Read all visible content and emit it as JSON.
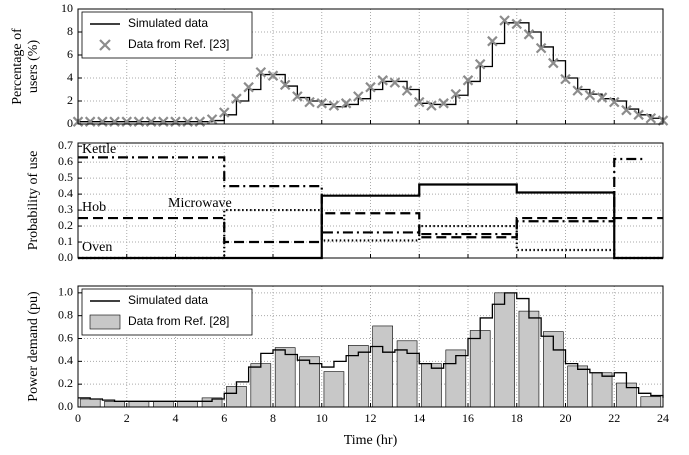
{
  "chart_data": [
    {
      "type": "line",
      "ylabel": [
        "Percentage of",
        "users (%)"
      ],
      "xlim": [
        0,
        24
      ],
      "ylim": [
        0,
        10
      ],
      "xticks": [
        0,
        2,
        4,
        6,
        8,
        10,
        12,
        14,
        16,
        18,
        20,
        22,
        24
      ],
      "yticks": [
        0,
        2,
        4,
        6,
        8,
        10
      ],
      "grid": true,
      "legend": "upper left",
      "series": [
        {
          "name": "Simulated data",
          "type": "line",
          "step": true,
          "color": "#000000",
          "x": [
            0,
            0.5,
            1,
            1.5,
            2,
            2.5,
            3,
            3.5,
            4,
            4.5,
            5,
            5.5,
            6,
            6.5,
            7,
            7.5,
            8,
            8.5,
            9,
            9.5,
            10,
            10.5,
            11,
            11.5,
            12,
            12.5,
            13,
            13.5,
            14,
            14.5,
            15,
            15.5,
            16,
            16.5,
            17,
            17.5,
            18,
            18.5,
            19,
            19.5,
            20,
            20.5,
            21,
            21.5,
            22,
            22.5,
            23,
            23.5,
            24
          ],
          "values": [
            0.2,
            0.2,
            0.2,
            0.2,
            0.2,
            0.2,
            0.2,
            0.2,
            0.2,
            0.2,
            0.2,
            0.3,
            0.8,
            2,
            3,
            4.3,
            4.3,
            3.3,
            2.3,
            2,
            1.7,
            1.5,
            1.7,
            2.2,
            3,
            3.7,
            3.7,
            3,
            1.8,
            1.7,
            1.7,
            2.5,
            3.7,
            5,
            7,
            8.8,
            8.8,
            8,
            6.7,
            5.5,
            4,
            3,
            2.6,
            2.2,
            2,
            1.3,
            0.8,
            0.5,
            0.3
          ]
        },
        {
          "name": "Data from Ref. [23]",
          "type": "scatter",
          "color": "#8c8c8c",
          "x": [
            0,
            0.5,
            1,
            1.5,
            2,
            2.5,
            3,
            3.5,
            4,
            4.5,
            5,
            5.5,
            6,
            6.5,
            7,
            7.5,
            8,
            8.5,
            9,
            9.5,
            10,
            10.5,
            11,
            11.5,
            12,
            12.5,
            13,
            13.5,
            14,
            14.5,
            15,
            15.5,
            16,
            16.5,
            17,
            17.5,
            18,
            18.5,
            19,
            19.5,
            20,
            20.5,
            21,
            21.5,
            22,
            22.5,
            23,
            23.5,
            24
          ],
          "values": [
            0.2,
            0.2,
            0.2,
            0.2,
            0.2,
            0.2,
            0.2,
            0.2,
            0.2,
            0.2,
            0.2,
            0.4,
            1,
            2.2,
            3.2,
            4.5,
            4.2,
            3.4,
            2.4,
            1.9,
            1.8,
            1.6,
            1.8,
            2.4,
            3.2,
            3.8,
            3.6,
            2.9,
            1.9,
            1.6,
            1.8,
            2.6,
            3.8,
            5.2,
            7.2,
            9,
            8.7,
            7.8,
            6.6,
            5.3,
            3.9,
            2.9,
            2.5,
            2.3,
            1.9,
            1.2,
            0.8,
            0.5,
            0.3
          ]
        }
      ]
    },
    {
      "type": "line",
      "ylabel": [
        "Probability of use"
      ],
      "xlim": [
        0,
        24
      ],
      "ylim": [
        0,
        0.72
      ],
      "xticks": [
        0,
        2,
        4,
        6,
        8,
        10,
        12,
        14,
        16,
        18,
        20,
        22,
        24
      ],
      "yticks": [
        {
          "value": 0,
          "label": "0.0"
        },
        0.1,
        0.2,
        0.3,
        0.4,
        0.5,
        0.6,
        0.7
      ],
      "grid": true,
      "annotations": [
        "Kettle",
        "Hob",
        "Microwave",
        "Oven"
      ],
      "series": [
        {
          "name": "Kettle",
          "type": "line",
          "step": true,
          "dash": "dashdot",
          "color": "#000000",
          "x": [
            0,
            6,
            10,
            14,
            18,
            22,
            23.2
          ],
          "values": [
            0.63,
            0.45,
            0.16,
            0.15,
            0.23,
            0.62,
            0.62
          ]
        },
        {
          "name": "Hob",
          "type": "line",
          "step": true,
          "dash": "dash",
          "color": "#000000",
          "x": [
            0,
            6,
            10,
            14,
            18,
            22,
            24
          ],
          "values": [
            0.25,
            0.1,
            0.28,
            0.13,
            0.25,
            0.25,
            0.25
          ]
        },
        {
          "name": "Microwave",
          "type": "line",
          "step": true,
          "dash": "dot",
          "color": "#000000",
          "x": [
            0,
            6,
            10,
            14,
            18,
            22,
            24
          ],
          "values": [
            0,
            0.3,
            0.11,
            0.2,
            0.05,
            0,
            0
          ]
        },
        {
          "name": "Oven",
          "type": "line",
          "step": true,
          "dash": "solid",
          "color": "#000000",
          "x": [
            0,
            6,
            10,
            14,
            18,
            22,
            24
          ],
          "values": [
            0,
            0,
            0.39,
            0.46,
            0.41,
            0,
            0
          ]
        }
      ]
    },
    {
      "type": "bar",
      "ylabel": [
        "Power demand (pu)"
      ],
      "xlabel": "Time (hr)",
      "xlim": [
        0,
        24
      ],
      "ylim": [
        0,
        1.06
      ],
      "xticks": [
        0,
        2,
        4,
        6,
        8,
        10,
        12,
        14,
        16,
        18,
        20,
        22,
        24
      ],
      "yticks": [
        {
          "value": 0,
          "label": "0.0"
        },
        0.2,
        0.4,
        0.6,
        0.8,
        {
          "value": 1,
          "label": "1.0"
        }
      ],
      "grid": true,
      "legend": "upper left",
      "series": [
        {
          "name": "Simulated data",
          "type": "line",
          "step": true,
          "color": "#000000",
          "x": [
            0,
            0.5,
            1,
            1.5,
            2,
            2.5,
            3,
            3.5,
            4,
            4.5,
            5,
            5.5,
            6,
            6.5,
            7,
            7.5,
            8,
            8.5,
            9,
            9.5,
            10,
            10.5,
            11,
            11.5,
            12,
            12.5,
            13,
            13.5,
            14,
            14.5,
            15,
            15.5,
            16,
            16.5,
            17,
            17.5,
            18,
            18.5,
            19,
            19.5,
            20,
            20.5,
            21,
            21.5,
            22,
            22.5,
            23,
            23.5,
            24
          ],
          "values": [
            0.08,
            0.07,
            0.06,
            0.05,
            0.05,
            0.05,
            0.05,
            0.05,
            0.05,
            0.05,
            0.05,
            0.07,
            0.12,
            0.22,
            0.35,
            0.47,
            0.5,
            0.46,
            0.41,
            0.38,
            0.35,
            0.4,
            0.45,
            0.48,
            0.53,
            0.48,
            0.5,
            0.47,
            0.38,
            0.34,
            0.38,
            0.45,
            0.6,
            0.78,
            0.9,
            1.0,
            0.95,
            0.78,
            0.62,
            0.5,
            0.38,
            0.33,
            0.3,
            0.27,
            0.3,
            0.17,
            0.12,
            0.1,
            0.08
          ]
        },
        {
          "name": "Data from Ref. [28]",
          "type": "bar",
          "color": "#c8c8c8",
          "x": [
            0.5,
            1.5,
            2.5,
            3.5,
            4.5,
            5.5,
            6.5,
            7.5,
            8.5,
            9.5,
            10.5,
            11.5,
            12.5,
            13.5,
            14.5,
            15.5,
            16.5,
            17.5,
            18.5,
            19.5,
            20.5,
            21.5,
            22.5,
            23.5
          ],
          "values": [
            0.07,
            0.05,
            0.05,
            0.05,
            0.05,
            0.08,
            0.18,
            0.38,
            0.52,
            0.44,
            0.31,
            0.54,
            0.71,
            0.58,
            0.38,
            0.5,
            0.67,
            1.0,
            0.84,
            0.66,
            0.36,
            0.3,
            0.21,
            0.09
          ]
        }
      ]
    }
  ]
}
